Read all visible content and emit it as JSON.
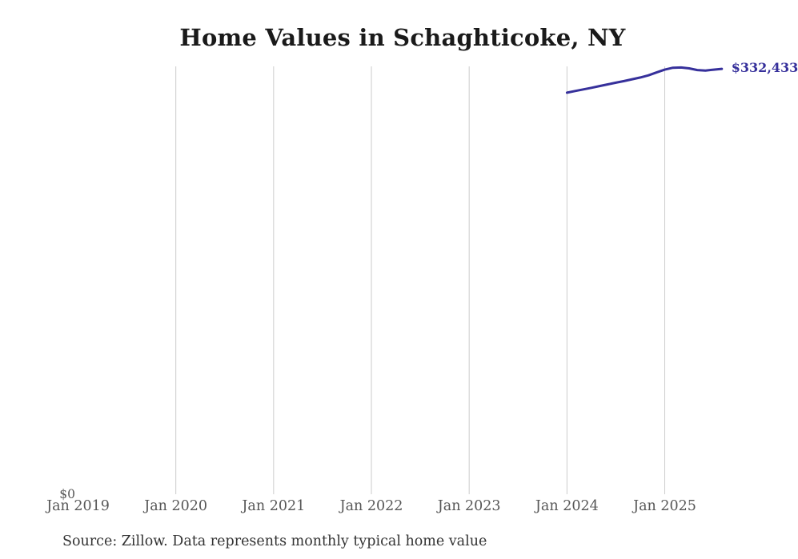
{
  "page": {
    "background": "#ffffff",
    "gridline_color": "#cccccc",
    "axis_label_color": "#575757",
    "title_color": "#1a1a1a"
  },
  "chart_data": {
    "type": "line",
    "title": "Home Values in Schaghticoke, NY",
    "source_note": "Source: Zillow. Data represents monthly typical home value",
    "x_tick_labels": [
      "Jan 2019",
      "Jan 2020",
      "Jan 2021",
      "Jan 2022",
      "Jan 2023",
      "Jan 2024",
      "Jan 2025"
    ],
    "y_zero_label": "$0",
    "end_value_label": "$332,433",
    "xlabel": "",
    "ylabel": "",
    "y_min": 0,
    "grid": "vertical-only",
    "legend": "none",
    "line_color": "#36309b",
    "label_color": "#36309b",
    "series": [
      {
        "name": "Monthly typical home value",
        "points": [
          {
            "date": "2024-01",
            "value": 313800
          },
          {
            "date": "2024-02",
            "value": 315100
          },
          {
            "date": "2024-03",
            "value": 316400
          },
          {
            "date": "2024-04",
            "value": 317600
          },
          {
            "date": "2024-05",
            "value": 319000
          },
          {
            "date": "2024-06",
            "value": 320300
          },
          {
            "date": "2024-07",
            "value": 321600
          },
          {
            "date": "2024-08",
            "value": 322900
          },
          {
            "date": "2024-09",
            "value": 324300
          },
          {
            "date": "2024-10",
            "value": 325700
          },
          {
            "date": "2024-11",
            "value": 327400
          },
          {
            "date": "2024-12",
            "value": 329600
          },
          {
            "date": "2025-01",
            "value": 331800
          },
          {
            "date": "2025-02",
            "value": 333300
          },
          {
            "date": "2025-03",
            "value": 333500
          },
          {
            "date": "2025-04",
            "value": 332800
          },
          {
            "date": "2025-05",
            "value": 331500
          },
          {
            "date": "2025-06",
            "value": 331100
          },
          {
            "date": "2025-07",
            "value": 331800
          },
          {
            "date": "2025-08",
            "value": 332433
          }
        ]
      }
    ]
  }
}
